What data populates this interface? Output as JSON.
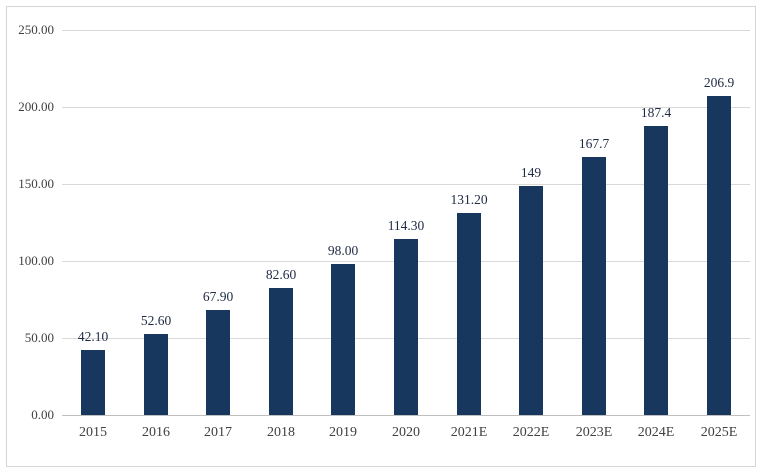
{
  "chart_data": {
    "type": "bar",
    "categories": [
      "2015",
      "2016",
      "2017",
      "2018",
      "2019",
      "2020",
      "2021E",
      "2022E",
      "2023E",
      "2024E",
      "2025E"
    ],
    "values": [
      42.1,
      52.6,
      67.9,
      82.6,
      98.0,
      114.3,
      131.2,
      149,
      167.7,
      187.4,
      206.9
    ],
    "value_labels": [
      "42.10",
      "52.60",
      "67.90",
      "82.60",
      "98.00",
      "114.30",
      "131.20",
      "149",
      "167.7",
      "187.4",
      "206.9"
    ],
    "title": "",
    "xlabel": "",
    "ylabel": "",
    "ylim": [
      0,
      250
    ],
    "y_ticks": [
      "0.00",
      "50.00",
      "100.00",
      "150.00",
      "200.00",
      "250.00"
    ],
    "grid": true,
    "legend_position": "none",
    "bar_color": "#17375e",
    "value_label_color": "#1f2a44",
    "axis_text_color": "#404040",
    "gridline_color": "#d9d9d9",
    "axis_line_color": "#bfbfbf"
  }
}
